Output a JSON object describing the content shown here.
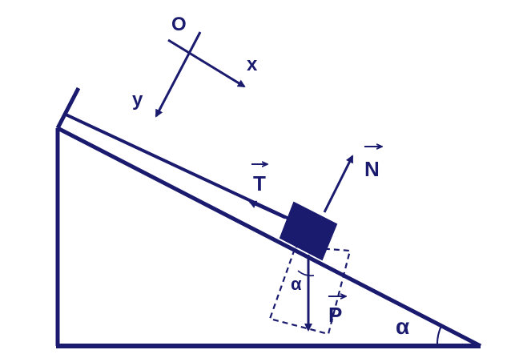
{
  "axes": {
    "origin_label": "O",
    "x_label": "x",
    "y_label": "y"
  },
  "forces": {
    "tension_label": "T",
    "normal_label": "N",
    "weight_label": "P"
  },
  "angles": {
    "incline_angle_label": "α",
    "weight_angle_label": "α"
  },
  "colors": {
    "stroke": "#1a1a6e",
    "block_fill": "#1a1a6e",
    "background": "#ffffff"
  }
}
